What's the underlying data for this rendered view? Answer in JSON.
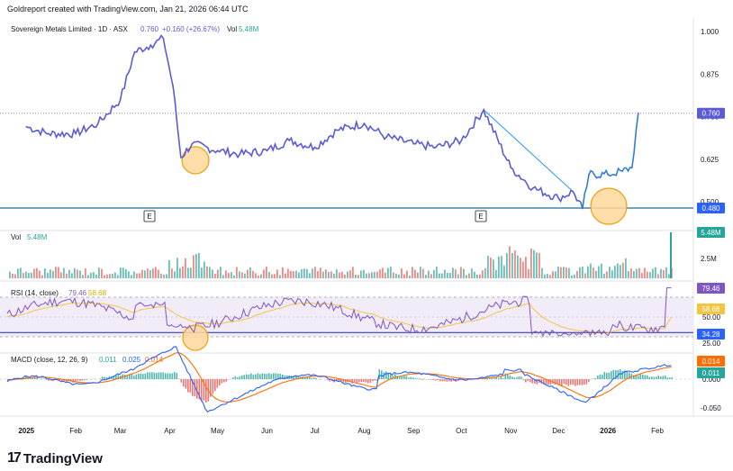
{
  "header": {
    "created_by": "Goldreport created with TradingView.com, Jan 21, 2026 06:44 UTC"
  },
  "logo": {
    "mark": "17",
    "text": "TradingView"
  },
  "colors": {
    "price_line": "#5b5bd6",
    "price_line_late": "#2f7fd6",
    "support_line": "#1f6e9c",
    "trend_line": "#2196f3",
    "highlight_fill": "#ffd89a",
    "highlight_stroke": "#f39c12",
    "vol_up": "#26a69a",
    "vol_down": "#ef5350",
    "rsi_line": "#7e57c2",
    "rsi_ma": "#f5c542",
    "rsi_band": "#ede7f6",
    "macd_line": "#2962ff",
    "signal_line": "#ff6d00",
    "last_price_label": "#5b5bd6",
    "support_label": "#2962ff"
  },
  "price_pane": {
    "legend": {
      "symbol": "Sovereign Metals Limited · 1D · ASX",
      "last": "0.760",
      "change": "+0.160 (+26.67%)",
      "vol_label": "Vol",
      "vol_value": "5.48M"
    },
    "axis_ticks": [
      "1.000",
      "0.875",
      "0.750",
      "0.625",
      "0.500"
    ],
    "last_price_label": "0.760",
    "support_label": "0.480",
    "earnings_markers": [
      "E",
      "E"
    ]
  },
  "volume_pane": {
    "legend": {
      "label": "Vol",
      "value": "5.48M"
    },
    "axis_ticks": [
      "2.5M"
    ],
    "value_label": "5.48M"
  },
  "rsi_pane": {
    "legend": {
      "label": "RSI (14, close)",
      "rsi": "79.46",
      "ma": "58.68"
    },
    "axis_ticks": [
      "50.00",
      "25.00"
    ],
    "rsi_label": "79.46",
    "ma_label": "58.68",
    "low_label": "34.28"
  },
  "macd_pane": {
    "legend": {
      "label": "MACD (close, 12, 26, 9)",
      "histogram": "0.011",
      "macd": "0.025",
      "signal": "0.014"
    },
    "axis_ticks": [
      "0.000",
      "-0.050"
    ],
    "signal_label": "0.014",
    "hist_label": "0.011"
  },
  "time_axis": [
    "2025",
    "Feb",
    "Mar",
    "Apr",
    "May",
    "Jun",
    "Jul",
    "Aug",
    "Sep",
    "Oct",
    "Nov",
    "Dec",
    "2026",
    "Feb"
  ],
  "chart_data": {
    "type": "line",
    "title": "Sovereign Metals Limited · 1D · ASX",
    "x": [
      "2025-01-01",
      "2025-01-15",
      "2025-02-01",
      "2025-02-15",
      "2025-03-01",
      "2025-03-10",
      "2025-03-20",
      "2025-03-28",
      "2025-04-03",
      "2025-04-08",
      "2025-04-15",
      "2025-05-01",
      "2025-05-15",
      "2025-06-01",
      "2025-06-15",
      "2025-07-01",
      "2025-07-15",
      "2025-08-01",
      "2025-08-15",
      "2025-09-01",
      "2025-09-15",
      "2025-10-01",
      "2025-10-15",
      "2025-11-01",
      "2025-11-15",
      "2025-12-01",
      "2025-12-10",
      "2025-12-16",
      "2025-12-20",
      "2026-01-01",
      "2026-01-10",
      "2026-01-16",
      "2026-01-20"
    ],
    "series": [
      {
        "values": [
          0.72,
          0.7,
          0.7,
          0.73,
          0.8,
          0.94,
          0.96,
          0.98,
          0.84,
          0.63,
          0.67,
          0.65,
          0.64,
          0.65,
          0.68,
          0.66,
          0.71,
          0.73,
          0.69,
          0.67,
          0.66,
          0.68,
          0.77,
          0.6,
          0.54,
          0.51,
          0.53,
          0.48,
          0.58,
          0.58,
          0.59,
          0.6,
          0.76
        ]
      }
    ],
    "ylim": [
      0.48,
      1.02
    ],
    "annotations": [
      "0.760",
      "0.480"
    ],
    "volume": {
      "ymax_label": "2.5M",
      "last": "5.48M"
    },
    "rsi": {
      "last": 79.46,
      "ma": 58.68,
      "low": 34.28,
      "ticks": [
        50,
        25
      ]
    },
    "macd": {
      "histogram": 0.011,
      "macd": 0.025,
      "signal": 0.014
    }
  }
}
